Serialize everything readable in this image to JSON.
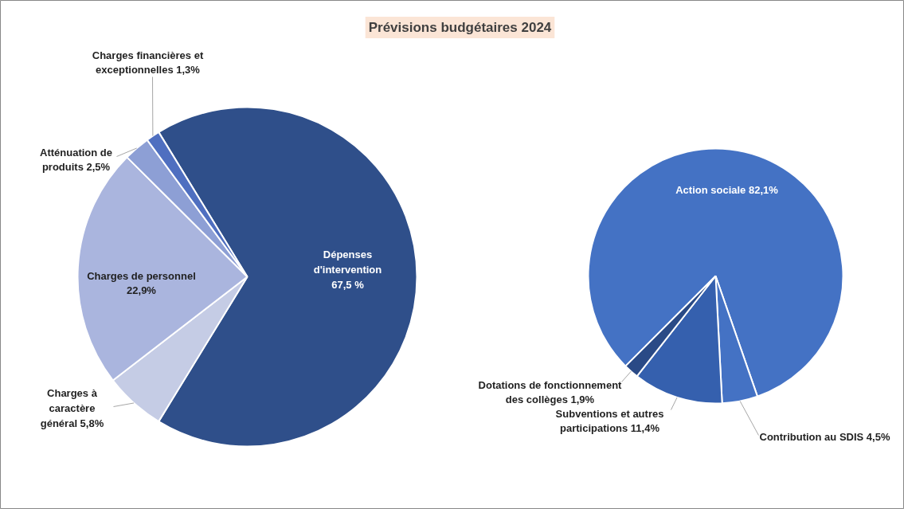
{
  "chart_data": [
    {
      "type": "pie",
      "title": "Prévisions budgétaires 2024",
      "categories": [
        "Dépenses d'intervention",
        "Charges à caractère général",
        "Charges de personnel",
        "Atténuation de produits",
        "Charges financières et exceptionnelles"
      ],
      "values": [
        67.5,
        5.8,
        22.9,
        2.5,
        1.3
      ],
      "value_labels": [
        "67,5 %",
        "5,8%",
        "22,9%",
        "2,5%",
        "1,3%"
      ],
      "colors": [
        "#2f4f8a",
        "#c5cce5",
        "#aab5de",
        "#8d9fd5",
        "#4f6fc0"
      ]
    },
    {
      "type": "pie",
      "categories": [
        "Action sociale",
        "Contribution au SDIS",
        "Subventions et autres participations",
        "Dotations de fonctionnement des collèges"
      ],
      "values": [
        82.1,
        4.5,
        11.4,
        1.9
      ],
      "value_labels": [
        "82,1%",
        "4,5%",
        "11,4%",
        "1,9%"
      ],
      "colors": [
        "#4472c4",
        "#4472c4",
        "#3560ae",
        "#2a4a86"
      ]
    }
  ]
}
